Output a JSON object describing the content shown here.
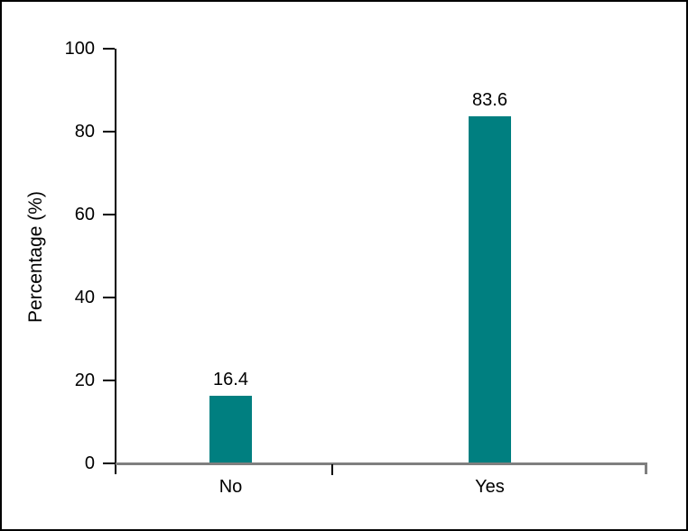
{
  "chart_data": {
    "type": "bar",
    "categories": [
      "No",
      "Yes"
    ],
    "values": [
      16.4,
      83.6
    ],
    "value_labels": [
      "16.4",
      "83.6"
    ],
    "title": "",
    "xlabel": "",
    "ylabel": "Percentage (%)",
    "ylim": [
      0,
      100
    ],
    "yticks": [
      0,
      20,
      40,
      60,
      80,
      100
    ],
    "grid": false,
    "legend": "none",
    "value_labels_shown": true,
    "colors": {
      "bar": "#007F80",
      "baseline": "#7F7F7F",
      "y_axis": "#000000",
      "tick": "#000000",
      "text": "#000000",
      "background": "#FFFFFF",
      "frame_border": "#000000"
    }
  }
}
